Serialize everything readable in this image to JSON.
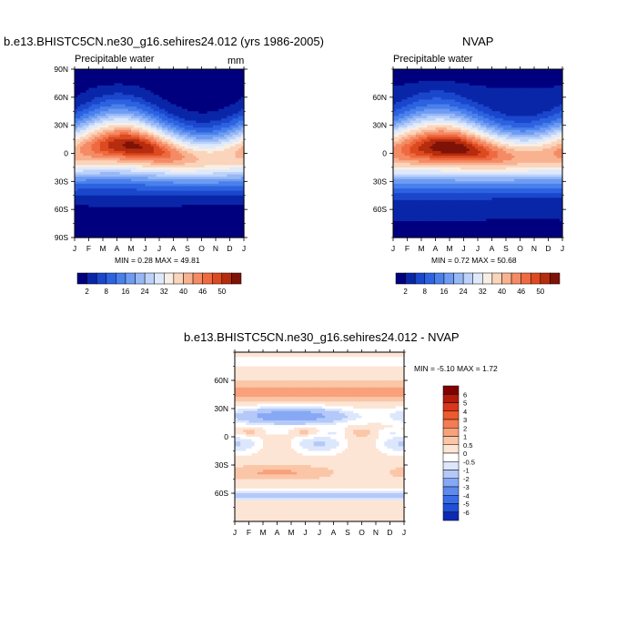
{
  "colors": {
    "seq": [
      "#00007f",
      "#0a26a8",
      "#1a47cc",
      "#2d62e0",
      "#4a80ec",
      "#6e9cf2",
      "#97b8f6",
      "#bcd2fa",
      "#dfe9fc",
      "#f7efe6",
      "#fbd4bc",
      "#f8b290",
      "#f48b64",
      "#ef6a41",
      "#dd4a20",
      "#b52c0f",
      "#7f1206"
    ],
    "div": [
      "#00007f",
      "#0d2ab2",
      "#2050d8",
      "#3a6ce8",
      "#5c8af0",
      "#86a8f5",
      "#b4c9f9",
      "#dde7fc",
      "#ffffff",
      "#fde5d6",
      "#fbc6a8",
      "#f8a17a",
      "#f37c52",
      "#ec5a2e",
      "#d8371a",
      "#b01b0c",
      "#7f0000"
    ]
  },
  "chart_data": [
    {
      "type": "heatmap",
      "title": "b.e13.BHISTC5CN.ne30_g16.sehires24.012 (yrs 1986-2005)",
      "subtitle": "Precipitable water",
      "units": "mm",
      "x": [
        "J",
        "F",
        "M",
        "A",
        "M",
        "J",
        "J",
        "A",
        "S",
        "O",
        "N",
        "D",
        "J"
      ],
      "ylabels": [
        "90N",
        "60N",
        "30N",
        "0",
        "30S",
        "60S",
        "90S"
      ],
      "ylim": [
        -90,
        90
      ],
      "min_label": "MIN = ",
      "min": "0.28",
      "max_label": "MAX = ",
      "max": "49.81",
      "colorbar": [
        "2",
        "8",
        "16",
        "24",
        "32",
        "40",
        "46",
        "50"
      ],
      "field": {
        "eq": 44,
        "amp": 7,
        "peak_lat": 8,
        "shift": 12,
        "sigma": 30,
        "floor": 1
      }
    },
    {
      "type": "heatmap",
      "title": "NVAP",
      "subtitle": "Precipitable water",
      "x": [
        "J",
        "F",
        "M",
        "A",
        "M",
        "J",
        "J",
        "A",
        "S",
        "O",
        "N",
        "D",
        "J"
      ],
      "ylabels": [
        "60N",
        "30N",
        "0",
        "30S",
        "60S"
      ],
      "ylim": [
        -90,
        90
      ],
      "min_label": "MIN = ",
      "min": "0.72",
      "max_label": "MAX = ",
      "max": "50.68",
      "colorbar": [
        "2",
        "8",
        "16",
        "24",
        "32",
        "40",
        "46",
        "50"
      ],
      "field": {
        "eq": 45,
        "amp": 6,
        "peak_lat": 6,
        "shift": 11,
        "sigma": 31,
        "floor": 2
      }
    },
    {
      "type": "heatmap",
      "title": "b.e13.BHISTC5CN.ne30_g16.sehires24.012 - NVAP",
      "x": [
        "J",
        "F",
        "M",
        "A",
        "M",
        "J",
        "J",
        "A",
        "S",
        "O",
        "N",
        "D",
        "J"
      ],
      "ylabels": [
        "60N",
        "30N",
        "0",
        "30S",
        "60S"
      ],
      "ylim": [
        -90,
        90
      ],
      "min_label": "MIN = ",
      "min": "-5.10",
      "max_label": "MAX = ",
      "max": "1.72",
      "colorbar": [
        "6",
        "5",
        "4",
        "3",
        "2",
        "1",
        "0.5",
        "0",
        "-0.5",
        "-1",
        "-2",
        "-3",
        "-4",
        "-5",
        "-6"
      ]
    }
  ]
}
